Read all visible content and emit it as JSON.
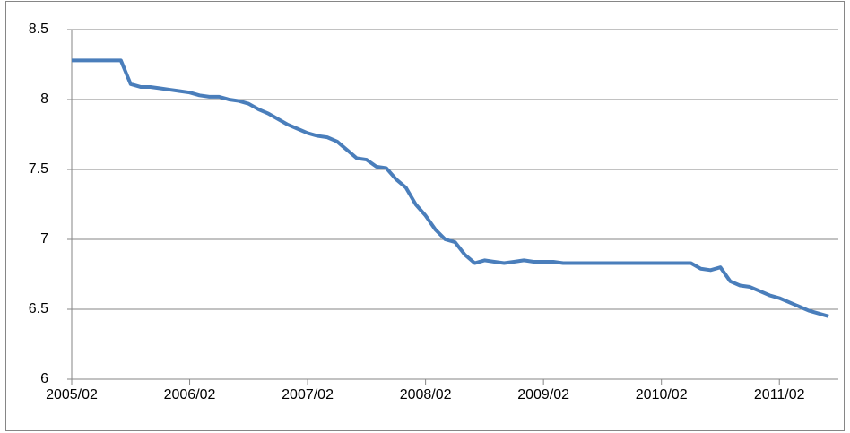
{
  "chart_data": {
    "type": "line",
    "x": [
      "2005/02",
      "2005/03",
      "2005/04",
      "2005/05",
      "2005/06",
      "2005/07",
      "2005/08",
      "2005/09",
      "2005/10",
      "2005/11",
      "2005/12",
      "2006/01",
      "2006/02",
      "2006/03",
      "2006/04",
      "2006/05",
      "2006/06",
      "2006/07",
      "2006/08",
      "2006/09",
      "2006/10",
      "2006/11",
      "2006/12",
      "2007/01",
      "2007/02",
      "2007/03",
      "2007/04",
      "2007/05",
      "2007/06",
      "2007/07",
      "2007/08",
      "2007/09",
      "2007/10",
      "2007/11",
      "2007/12",
      "2008/01",
      "2008/02",
      "2008/03",
      "2008/04",
      "2008/05",
      "2008/06",
      "2008/07",
      "2008/08",
      "2008/09",
      "2008/10",
      "2008/11",
      "2008/12",
      "2009/01",
      "2009/02",
      "2009/03",
      "2009/04",
      "2009/05",
      "2009/06",
      "2009/07",
      "2009/08",
      "2009/09",
      "2009/10",
      "2009/11",
      "2009/12",
      "2010/01",
      "2010/02",
      "2010/03",
      "2010/04",
      "2010/05",
      "2010/06",
      "2010/07",
      "2010/08",
      "2010/09",
      "2010/10",
      "2010/11",
      "2010/12",
      "2011/01",
      "2011/02",
      "2011/03",
      "2011/04",
      "2011/05",
      "2011/06",
      "2011/07"
    ],
    "series": [
      {
        "color": "#4a7ebb",
        "values": [
          8.28,
          8.28,
          8.28,
          8.28,
          8.28,
          8.28,
          8.11,
          8.09,
          8.09,
          8.08,
          8.07,
          8.06,
          8.05,
          8.03,
          8.02,
          8.02,
          8.0,
          7.99,
          7.97,
          7.93,
          7.9,
          7.86,
          7.82,
          7.79,
          7.76,
          7.74,
          7.73,
          7.7,
          7.64,
          7.58,
          7.57,
          7.52,
          7.51,
          7.43,
          7.37,
          7.25,
          7.17,
          7.07,
          7.0,
          6.98,
          6.89,
          6.83,
          6.85,
          6.84,
          6.83,
          6.84,
          6.85,
          6.84,
          6.84,
          6.84,
          6.83,
          6.83,
          6.83,
          6.83,
          6.83,
          6.83,
          6.83,
          6.83,
          6.83,
          6.83,
          6.83,
          6.83,
          6.83,
          6.83,
          6.79,
          6.78,
          6.8,
          6.7,
          6.67,
          6.66,
          6.63,
          6.6,
          6.58,
          6.55,
          6.52,
          6.49,
          6.47,
          6.45
        ]
      }
    ],
    "xlim": [
      "2005/02",
      "2011/08"
    ],
    "xticks": [
      "2005/02",
      "2006/02",
      "2007/02",
      "2008/02",
      "2009/02",
      "2010/02",
      "2011/02"
    ],
    "ylim": [
      6,
      8.5
    ],
    "yticks": [
      6,
      6.5,
      7,
      7.5,
      8,
      8.5
    ],
    "grid": true
  }
}
